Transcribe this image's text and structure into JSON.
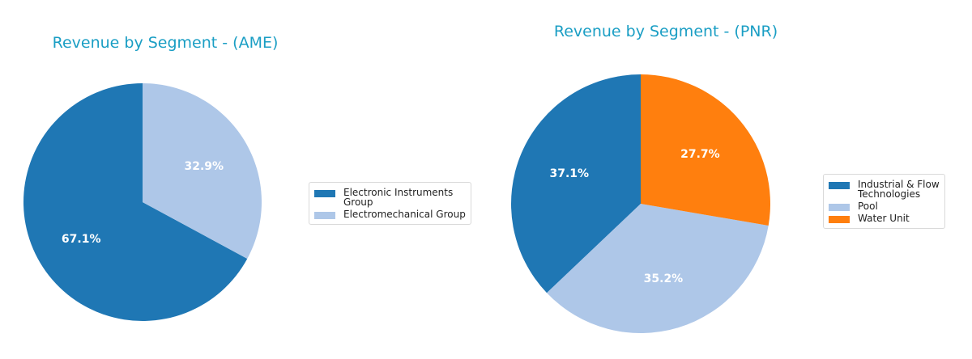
{
  "chart_data": [
    {
      "type": "pie",
      "title": "Revenue by Segment - (AME)",
      "categories": [
        "Electronic Instruments Group",
        "Electromechanical Group"
      ],
      "legend_labels": [
        "Electronic Instruments\nGroup",
        "Electromechanical Group"
      ],
      "values": [
        67.1,
        32.9
      ],
      "value_labels": [
        "67.1%",
        "32.9%"
      ],
      "colors": [
        "#1f77b4",
        "#aec7e8"
      ],
      "start_angle": 90,
      "legend_position": "right",
      "center": [
        176,
        250
      ],
      "radius": 147
    },
    {
      "type": "pie",
      "title": "Revenue by Segment - (PNR)",
      "categories": [
        "Industrial & Flow Technologies",
        "Pool",
        "Water Unit"
      ],
      "legend_labels": [
        "Industrial & Flow\nTechnologies",
        "Pool",
        "Water Unit"
      ],
      "values": [
        37.1,
        35.2,
        27.7
      ],
      "value_labels": [
        "37.1%",
        "35.2%",
        "27.7%"
      ],
      "colors": [
        "#1f77b4",
        "#aec7e8",
        "#ff7f0e"
      ],
      "start_angle": 90,
      "legend_position": "right",
      "center": [
        791,
        252
      ],
      "radius": 160
    }
  ]
}
